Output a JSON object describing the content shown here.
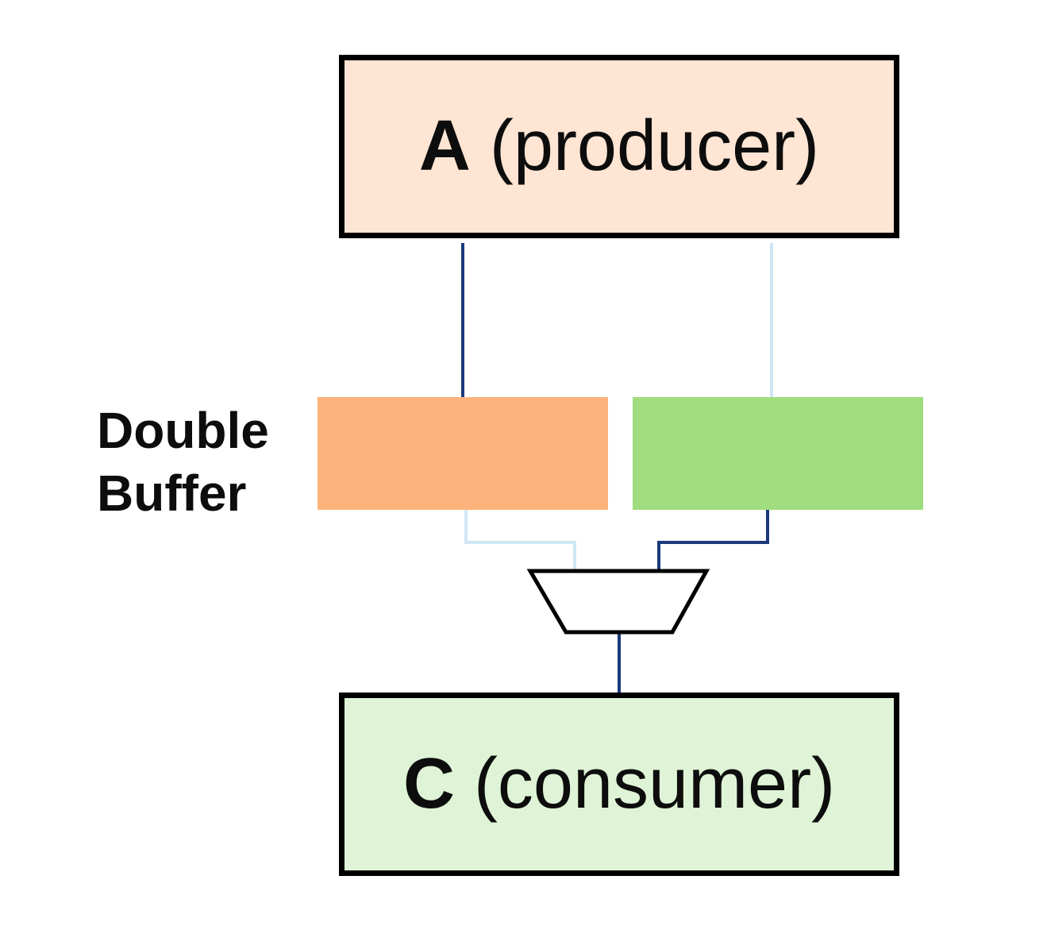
{
  "producer": {
    "letter": "A",
    "role": "(producer)",
    "fill": "#ffe5d3"
  },
  "consumer": {
    "letter": "C",
    "role": "(consumer)",
    "fill": "#dff4d6"
  },
  "double_buffer": {
    "label_line1": "Double",
    "label_line2": "Buffer",
    "buffers": [
      {
        "fill": "#fdb37b"
      },
      {
        "fill": "#a0dd7f"
      }
    ]
  },
  "wires": {
    "active_color": "#1a3a7a",
    "inactive_color": "#d0e6f5"
  },
  "multiplexer": {
    "icon": "mux-icon"
  }
}
